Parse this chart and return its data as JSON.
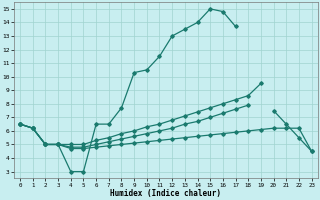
{
  "xlabel": "Humidex (Indice chaleur)",
  "bg_color": "#c8eef0",
  "line_color": "#1a7a6e",
  "grid_color": "#a0d4d0",
  "xlim": [
    -0.5,
    23.5
  ],
  "ylim": [
    2.5,
    15.5
  ],
  "xticks": [
    0,
    1,
    2,
    3,
    4,
    5,
    6,
    7,
    8,
    9,
    10,
    11,
    12,
    13,
    14,
    15,
    16,
    17,
    18,
    19,
    20,
    21,
    22,
    23
  ],
  "yticks": [
    3,
    4,
    5,
    6,
    7,
    8,
    9,
    10,
    11,
    12,
    13,
    14,
    15
  ],
  "line1_x": [
    0,
    1,
    2,
    3,
    4,
    5,
    6,
    7,
    8,
    9,
    10,
    11,
    12,
    13,
    14,
    15,
    16,
    17
  ],
  "line1_y": [
    6.5,
    6.2,
    5.0,
    5.0,
    3.0,
    3.0,
    6.5,
    6.5,
    7.7,
    10.3,
    10.5,
    11.5,
    13.0,
    13.5,
    14.0,
    15.0,
    14.8,
    13.7
  ],
  "line2_x": [
    0,
    1,
    2,
    3,
    4,
    5,
    6,
    7,
    8,
    9,
    10,
    11,
    12,
    13,
    14,
    15,
    16,
    17,
    18,
    19
  ],
  "line2_y": [
    6.5,
    6.2,
    5.0,
    5.0,
    5.0,
    5.0,
    5.3,
    5.5,
    5.8,
    6.0,
    6.3,
    6.5,
    6.8,
    7.1,
    7.4,
    7.7,
    8.0,
    8.3,
    8.6,
    9.5
  ],
  "line3_x": [
    0,
    1,
    2,
    3,
    4,
    5,
    6,
    7,
    8,
    9,
    10,
    11,
    12,
    13,
    14,
    15,
    16,
    17,
    18,
    20,
    21,
    22,
    23
  ],
  "line3_y": [
    6.5,
    6.2,
    5.0,
    5.0,
    4.8,
    4.8,
    5.0,
    5.2,
    5.4,
    5.6,
    5.8,
    6.0,
    6.2,
    6.5,
    6.7,
    7.0,
    7.3,
    7.6,
    7.9,
    7.5,
    6.5,
    5.5,
    4.5
  ],
  "line4_x": [
    0,
    1,
    2,
    3,
    4,
    5,
    6,
    7,
    8,
    9,
    10,
    11,
    12,
    13,
    14,
    15,
    16,
    17,
    18,
    19,
    20,
    21,
    22,
    23
  ],
  "line4_y": [
    6.5,
    6.2,
    5.0,
    5.0,
    4.7,
    4.7,
    4.8,
    4.9,
    5.0,
    5.1,
    5.2,
    5.3,
    5.4,
    5.5,
    5.6,
    5.7,
    5.8,
    5.9,
    6.0,
    6.1,
    6.2,
    6.2,
    6.2,
    4.5
  ]
}
